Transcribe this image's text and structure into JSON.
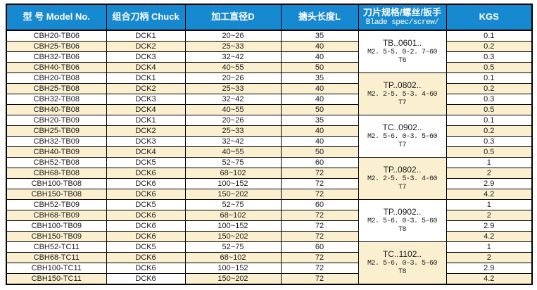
{
  "colors": {
    "header_bg": "#1789D0",
    "header_text": "#ffffff",
    "row_bg": "#ffffff",
    "row_alt_bg": "#FAEFCF",
    "border": "#000000",
    "body_text": "#1c1c1c"
  },
  "table": {
    "headers": [
      {
        "id": "model",
        "label": "型 号 Model No."
      },
      {
        "id": "chuck",
        "label": "组合刀柄 Chuck"
      },
      {
        "id": "diameter",
        "label": "加工直径D"
      },
      {
        "id": "length",
        "label": "搪头长度L"
      },
      {
        "id": "blade",
        "label": "刀片规格/螺丝/扳手",
        "sublabel": "Blade spec/screw/"
      },
      {
        "id": "kgs",
        "label": "KGS"
      }
    ],
    "groups": [
      {
        "spec_line1": "TB..0601..",
        "spec_line2": "M2. 5-5. 0-2. 7-60",
        "spec_line3": "T6"
      },
      {
        "spec_line1": "TP..0802..",
        "spec_line2": "M2. 2-5. 5-3. 4-60",
        "spec_line3": "T7"
      },
      {
        "spec_line1": "TC..0902..",
        "spec_line2": "M2. 5-6. 0-3. 5-60",
        "spec_line3": "T7"
      },
      {
        "spec_line1": "TP..0802..",
        "spec_line2": "M2. 2-5. 5-3. 4-60",
        "spec_line3": "T7"
      },
      {
        "spec_line1": "TP..0902..",
        "spec_line2": "M2. 5-6. 0-3. 5-60",
        "spec_line3": "T8"
      },
      {
        "spec_line1": "TC..1102..",
        "spec_line2": "M2. 5-6. 0-3. 5-60",
        "spec_line3": "T8"
      }
    ],
    "rows": [
      {
        "model": "CBH20-TB06",
        "chuck": "DCK1",
        "diameter": "20~26",
        "length": "35",
        "kgs": "0.1",
        "group": 0
      },
      {
        "model": "CBH25-TB06",
        "chuck": "DCK2",
        "diameter": "25~33",
        "length": "40",
        "kgs": "0.2",
        "group": 0
      },
      {
        "model": "CBH32-TB06",
        "chuck": "DCK3",
        "diameter": "32~42",
        "length": "40",
        "kgs": "0.3",
        "group": 0
      },
      {
        "model": "CBH40-TB06",
        "chuck": "DCK4",
        "diameter": "40~55",
        "length": "50",
        "kgs": "0.5",
        "group": 0
      },
      {
        "model": "CBH20-TB08",
        "chuck": "DCK1",
        "diameter": "20~26",
        "length": "35",
        "kgs": "0.1",
        "group": 1
      },
      {
        "model": "CBH25-TB08",
        "chuck": "DCK2",
        "diameter": "25~33",
        "length": "40",
        "kgs": "0.2",
        "group": 1
      },
      {
        "model": "CBH32-TB08",
        "chuck": "DCK3",
        "diameter": "32~42",
        "length": "40",
        "kgs": "0.3",
        "group": 1
      },
      {
        "model": "CBH40-TB08",
        "chuck": "DCK4",
        "diameter": "40~55",
        "length": "50",
        "kgs": "0.5",
        "group": 1
      },
      {
        "model": "CBH20-TB09",
        "chuck": "DCK1",
        "diameter": "20~26",
        "length": "35",
        "kgs": "0.1",
        "group": 2
      },
      {
        "model": "CBH25-TB09",
        "chuck": "DCK2",
        "diameter": "25~33",
        "length": "40",
        "kgs": "0.2",
        "group": 2
      },
      {
        "model": "CBH32-TB09",
        "chuck": "DCK3",
        "diameter": "32~42",
        "length": "40",
        "kgs": "0.3",
        "group": 2
      },
      {
        "model": "CBH40-TB09",
        "chuck": "DCK4",
        "diameter": "40~55",
        "length": "50",
        "kgs": "0.5",
        "group": 2
      },
      {
        "model": "CBH52-TB08",
        "chuck": "DCK5",
        "diameter": "52~75",
        "length": "60",
        "kgs": "1",
        "group": 3
      },
      {
        "model": "CBH68-TB08",
        "chuck": "DCK6",
        "diameter": "68~102",
        "length": "72",
        "kgs": "2",
        "group": 3
      },
      {
        "model": "CBH100-TB08",
        "chuck": "DCK6",
        "diameter": "100~152",
        "length": "72",
        "kgs": "2.9",
        "group": 3
      },
      {
        "model": "CBH150-TB08",
        "chuck": "DCK6",
        "diameter": "150~202",
        "length": "72",
        "kgs": "4.2",
        "group": 3
      },
      {
        "model": "CBH52-TB09",
        "chuck": "DCK5",
        "diameter": "52~75",
        "length": "60",
        "kgs": "1",
        "group": 4
      },
      {
        "model": "CBH68-TB09",
        "chuck": "DCK6",
        "diameter": "68~102",
        "length": "72",
        "kgs": "2",
        "group": 4
      },
      {
        "model": "CBH100-TB09",
        "chuck": "DCK6",
        "diameter": "100~152",
        "length": "72",
        "kgs": "2.9",
        "group": 4
      },
      {
        "model": "CBH150-TB09",
        "chuck": "DCK6",
        "diameter": "150~202",
        "length": "72",
        "kgs": "4.2",
        "group": 4
      },
      {
        "model": "CBH52-TC11",
        "chuck": "DCK5",
        "diameter": "52~75",
        "length": "60",
        "kgs": "1",
        "group": 5
      },
      {
        "model": "CBH68-TC11",
        "chuck": "DCK6",
        "diameter": "68~102",
        "length": "72",
        "kgs": "2",
        "group": 5
      },
      {
        "model": "CBH100-TC11",
        "chuck": "DCK6",
        "diameter": "100~152",
        "length": "72",
        "kgs": "2.9",
        "group": 5
      },
      {
        "model": "CBH150-TC11",
        "chuck": "DCK6",
        "diameter": "150~202",
        "length": "72",
        "kgs": "4.2",
        "group": 5,
        "chuck_plain": true
      }
    ]
  }
}
